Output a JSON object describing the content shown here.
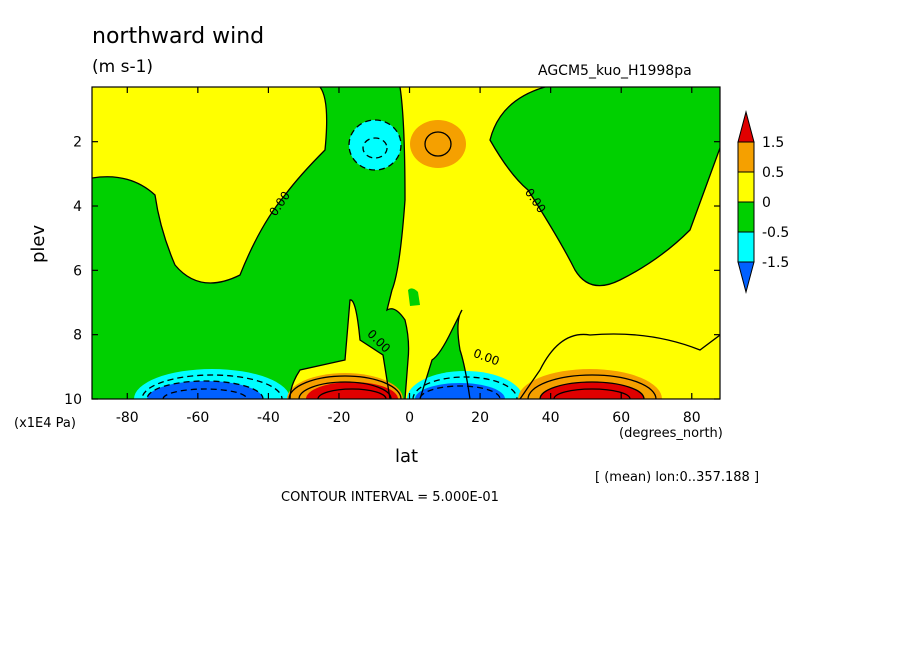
{
  "chart_data": {
    "type": "heatmap",
    "title": "northward wind",
    "units": "(m s-1)",
    "experiment": "AGCM5_kuo_H1998pa",
    "xlabel": "lat",
    "xunits": "(degrees_north)",
    "ylabel": "plev",
    "yunits": "(x1E4 Pa)",
    "xlim": [
      -90,
      88
    ],
    "ylim": [
      10,
      0.3
    ],
    "x_ticks": [
      "-80",
      "-60",
      "-40",
      "-20",
      "0",
      "20",
      "40",
      "60",
      "80"
    ],
    "x_tick_values": [
      -80,
      -60,
      -40,
      -20,
      0,
      20,
      40,
      60,
      80
    ],
    "y_ticks": [
      "2",
      "4",
      "6",
      "8",
      "10"
    ],
    "y_tick_values": [
      2,
      4,
      6,
      8,
      10
    ],
    "contour_interval": "CONTOUR INTERVAL = 5.000E-01",
    "subset_note": "[ (mean) lon:0..357.188 ]",
    "contour_labels": [
      "0.00",
      "0.00",
      "0.00",
      "0.00"
    ],
    "colorbar": {
      "levels": [
        "1.5",
        "0.5",
        "0",
        "-0.5",
        "-1.5"
      ],
      "colors": [
        "#e00000",
        "#f5a000",
        "#ffff00",
        "#00d000",
        "#00ffff",
        "#0060ff"
      ]
    },
    "features": [
      {
        "sign": "negative",
        "lat": -57,
        "plev": 9.9,
        "min_approx": -2.5
      },
      {
        "sign": "positive",
        "lat": -12,
        "plev": 9.9,
        "max_approx": 2.5
      },
      {
        "sign": "negative",
        "lat": 12,
        "plev": 9.9,
        "min_approx": -2.0
      },
      {
        "sign": "positive",
        "lat": 60,
        "plev": 9.9,
        "max_approx": 2.5
      },
      {
        "sign": "negative",
        "lat": -11,
        "plev": 2.0,
        "min_approx": -0.8
      },
      {
        "sign": "positive",
        "lat": 8,
        "plev": 2.0,
        "max_approx": 0.8
      }
    ]
  }
}
